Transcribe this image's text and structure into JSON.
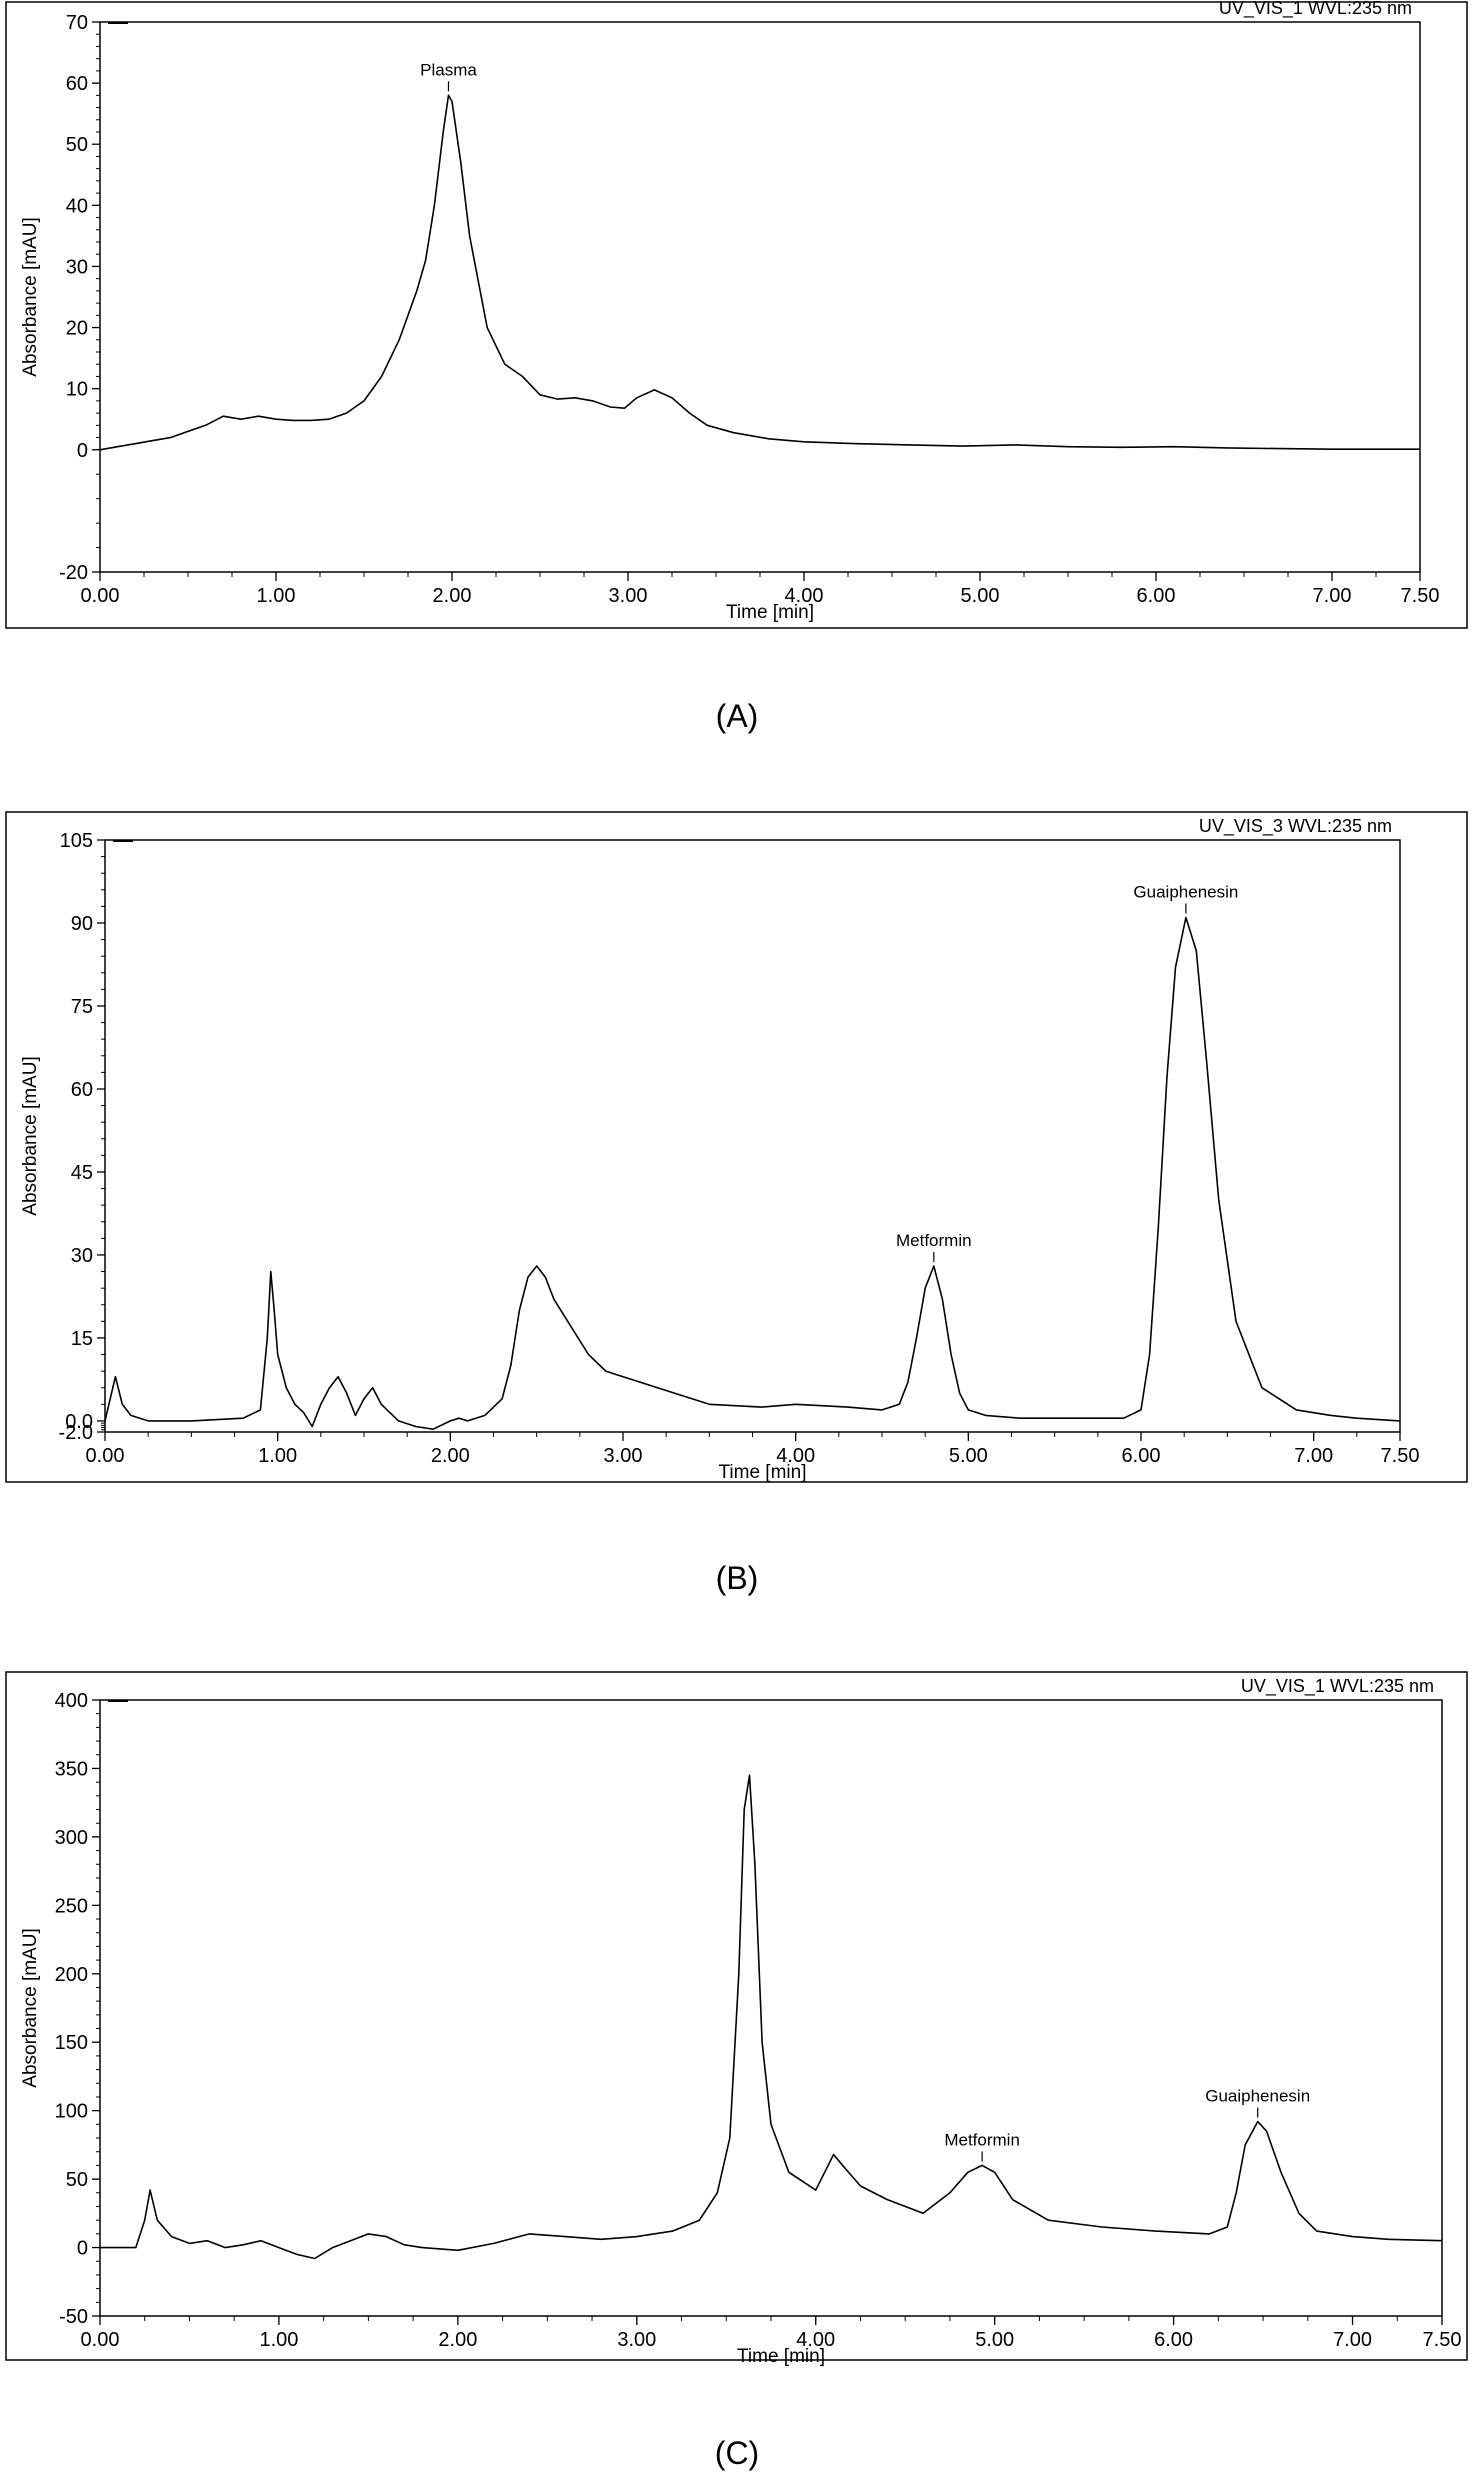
{
  "chart_data": [
    {
      "type": "line",
      "channel_label": "UV_VIS_1 WVL:235 nm",
      "xlabel": "Time [min]",
      "ylabel": "Absorbance [mAU]",
      "caption": "(A)",
      "xlim": [
        0,
        7.5
      ],
      "ylim": [
        -20,
        70
      ],
      "x_ticks": [
        "0.00",
        "1.00",
        "2.00",
        "3.00",
        "4.00",
        "5.00",
        "6.00",
        "7.00",
        "7.50"
      ],
      "y_ticks": [
        "-20",
        "0",
        "10",
        "20",
        "30",
        "40",
        "50",
        "60",
        "70"
      ],
      "peaks": [
        {
          "label": "Plasma",
          "x": 1.98,
          "y": 58
        }
      ],
      "series": [
        {
          "x": [
            0.0,
            0.1,
            0.2,
            0.3,
            0.4,
            0.5,
            0.6,
            0.7,
            0.8,
            0.9,
            1.0,
            1.1,
            1.2,
            1.3,
            1.4,
            1.5,
            1.6,
            1.7,
            1.8,
            1.85,
            1.9,
            1.95,
            1.98,
            2.0,
            2.05,
            2.1,
            2.2,
            2.3,
            2.4,
            2.5,
            2.6,
            2.7,
            2.8,
            2.9,
            2.98,
            3.05,
            3.15,
            3.25,
            3.35,
            3.45,
            3.6,
            3.8,
            4.0,
            4.3,
            4.6,
            4.9,
            5.2,
            5.5,
            5.8,
            6.1,
            6.4,
            6.7,
            7.0,
            7.3,
            7.5
          ],
          "y": [
            0,
            0.5,
            1.0,
            1.5,
            2.0,
            3.0,
            4.0,
            5.5,
            5.0,
            5.5,
            5.0,
            4.8,
            4.8,
            5.0,
            6.0,
            8.0,
            12.0,
            18.0,
            26.0,
            31.0,
            40.0,
            52.0,
            58.0,
            57.0,
            47.0,
            35.0,
            20.0,
            14.0,
            12.0,
            9.0,
            8.3,
            8.5,
            8.0,
            7.0,
            6.8,
            8.5,
            9.8,
            8.5,
            6.0,
            4.0,
            2.8,
            1.8,
            1.3,
            1.0,
            0.8,
            0.6,
            0.8,
            0.5,
            0.4,
            0.5,
            0.3,
            0.2,
            0.1,
            0.1,
            0.1
          ]
        }
      ]
    },
    {
      "type": "line",
      "channel_label": "UV_VIS_3 WVL:235 nm",
      "xlabel": "Time [min]",
      "ylabel": "Absorbance [mAU]",
      "caption": "(B)",
      "xlim": [
        0,
        7.5
      ],
      "ylim": [
        -2,
        105
      ],
      "x_ticks": [
        "0.00",
        "1.00",
        "2.00",
        "3.00",
        "4.00",
        "5.00",
        "6.00",
        "7.00",
        "7.50"
      ],
      "y_ticks": [
        "-2.0",
        "0.0",
        "15",
        "30",
        "45",
        "60",
        "75",
        "90",
        "105"
      ],
      "peaks": [
        {
          "label": "Metformin",
          "x": 4.8,
          "y": 28
        },
        {
          "label": "Guaiphenesin",
          "x": 6.26,
          "y": 91
        }
      ],
      "series": [
        {
          "x": [
            0.0,
            0.03,
            0.06,
            0.1,
            0.15,
            0.25,
            0.5,
            0.8,
            0.9,
            0.94,
            0.96,
            0.98,
            1.0,
            1.05,
            1.1,
            1.15,
            1.2,
            1.25,
            1.3,
            1.35,
            1.4,
            1.45,
            1.5,
            1.55,
            1.6,
            1.7,
            1.8,
            1.9,
            2.0,
            2.05,
            2.1,
            2.2,
            2.3,
            2.35,
            2.4,
            2.45,
            2.5,
            2.55,
            2.6,
            2.7,
            2.8,
            2.9,
            3.0,
            3.2,
            3.5,
            3.8,
            4.0,
            4.3,
            4.5,
            4.6,
            4.65,
            4.7,
            4.75,
            4.8,
            4.85,
            4.9,
            4.95,
            5.0,
            5.1,
            5.3,
            5.6,
            5.9,
            6.0,
            6.05,
            6.1,
            6.15,
            6.2,
            6.26,
            6.32,
            6.38,
            6.45,
            6.55,
            6.7,
            6.9,
            7.1,
            7.25,
            7.5
          ],
          "y": [
            0,
            4,
            8,
            3,
            1,
            0,
            0,
            0.5,
            2,
            15,
            27,
            20,
            12,
            6,
            3,
            1.5,
            -1,
            3,
            6,
            8,
            5,
            1,
            4,
            6,
            3,
            0,
            -1,
            -1.5,
            0,
            0.5,
            0,
            1,
            4,
            10,
            20,
            26,
            28,
            26,
            22,
            17,
            12,
            9,
            8,
            6,
            3,
            2.5,
            3,
            2.5,
            2,
            3,
            7,
            15,
            24,
            28,
            22,
            12,
            5,
            2,
            1,
            0.5,
            0.5,
            0.5,
            2,
            12,
            35,
            62,
            82,
            91,
            85,
            65,
            40,
            18,
            6,
            2,
            1,
            0.5,
            0
          ]
        }
      ]
    },
    {
      "type": "line",
      "channel_label": "UV_VIS_1 WVL:235 nm",
      "xlabel": "Time [min]",
      "ylabel": "Absorbance [mAU]",
      "caption": "(C)",
      "xlim": [
        0,
        7.5
      ],
      "ylim": [
        -50,
        400
      ],
      "x_ticks": [
        "0.00",
        "1.00",
        "2.00",
        "3.00",
        "4.00",
        "5.00",
        "6.00",
        "7.00",
        "7.50"
      ],
      "y_ticks": [
        "-50",
        "0",
        "50",
        "100",
        "150",
        "200",
        "250",
        "300",
        "350",
        "400"
      ],
      "peaks": [
        {
          "label": "Metformin",
          "x": 4.93,
          "y": 60
        },
        {
          "label": "Guaiphenesin",
          "x": 6.47,
          "y": 92
        }
      ],
      "series": [
        {
          "x": [
            0.0,
            0.2,
            0.25,
            0.28,
            0.32,
            0.4,
            0.5,
            0.6,
            0.7,
            0.8,
            0.9,
            1.0,
            1.1,
            1.2,
            1.3,
            1.4,
            1.5,
            1.6,
            1.7,
            1.8,
            2.0,
            2.2,
            2.4,
            2.6,
            2.8,
            3.0,
            3.2,
            3.35,
            3.45,
            3.52,
            3.57,
            3.6,
            3.63,
            3.66,
            3.7,
            3.75,
            3.85,
            4.0,
            4.05,
            4.1,
            4.15,
            4.25,
            4.4,
            4.6,
            4.75,
            4.85,
            4.93,
            5.0,
            5.1,
            5.3,
            5.6,
            5.9,
            6.2,
            6.3,
            6.35,
            6.4,
            6.47,
            6.52,
            6.6,
            6.7,
            6.8,
            7.0,
            7.2,
            7.5
          ],
          "y": [
            0,
            0,
            20,
            42,
            20,
            8,
            3,
            5,
            0,
            2,
            5,
            0,
            -5,
            -8,
            0,
            5,
            10,
            8,
            2,
            0,
            -2,
            3,
            10,
            8,
            6,
            8,
            12,
            20,
            40,
            80,
            200,
            320,
            345,
            280,
            150,
            90,
            55,
            42,
            55,
            68,
            60,
            45,
            35,
            25,
            40,
            55,
            60,
            55,
            35,
            20,
            15,
            12,
            10,
            15,
            40,
            75,
            92,
            85,
            55,
            25,
            12,
            8,
            6,
            5
          ]
        }
      ]
    }
  ]
}
